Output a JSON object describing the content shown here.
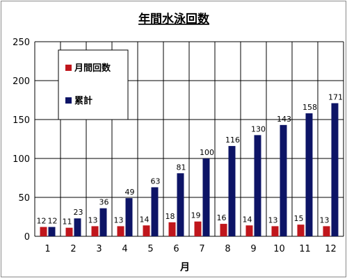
{
  "chart_data": {
    "type": "bar",
    "title": "年間水泳回数",
    "xlabel": "月",
    "ylabel": "",
    "ylim": [
      0,
      250
    ],
    "yticks": [
      0,
      50,
      100,
      150,
      200,
      250
    ],
    "grid": true,
    "legend_position": "top-left",
    "categories": [
      "1",
      "2",
      "3",
      "4",
      "5",
      "6",
      "7",
      "8",
      "9",
      "10",
      "11",
      "12"
    ],
    "series": [
      {
        "name": "月間回数",
        "color": "#c0161c",
        "values": [
          12,
          11,
          13,
          13,
          14,
          18,
          19,
          16,
          14,
          13,
          15,
          13
        ]
      },
      {
        "name": "累計",
        "color": "#0d1466",
        "values": [
          12,
          23,
          36,
          49,
          63,
          81,
          100,
          116,
          130,
          143,
          158,
          171
        ]
      }
    ]
  }
}
